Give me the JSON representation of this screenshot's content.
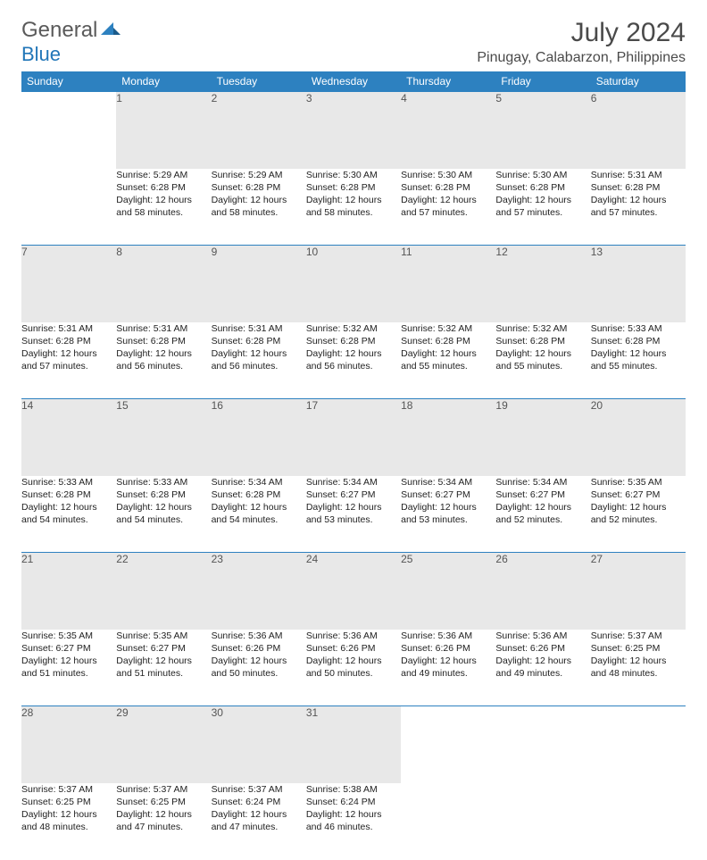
{
  "logo": {
    "general": "General",
    "blue": "Blue"
  },
  "title": "July 2024",
  "location": "Pinugay, Calabarzon, Philippines",
  "colors": {
    "header_bg": "#2d81c0",
    "header_text": "#ffffff",
    "daynum_bg": "#e8e8e8",
    "rule": "#2d81c0",
    "text": "#222222",
    "logo_gray": "#5a5a5a",
    "logo_blue": "#2176b8"
  },
  "fonts": {
    "title_size_pt": 22,
    "location_size_pt": 12,
    "header_size_pt": 9,
    "body_size_pt": 8
  },
  "weekdays": [
    "Sunday",
    "Monday",
    "Tuesday",
    "Wednesday",
    "Thursday",
    "Friday",
    "Saturday"
  ],
  "weeks": [
    {
      "days": [
        null,
        {
          "n": "1",
          "sunrise": "Sunrise: 5:29 AM",
          "sunset": "Sunset: 6:28 PM",
          "day1": "Daylight: 12 hours",
          "day2": "and 58 minutes."
        },
        {
          "n": "2",
          "sunrise": "Sunrise: 5:29 AM",
          "sunset": "Sunset: 6:28 PM",
          "day1": "Daylight: 12 hours",
          "day2": "and 58 minutes."
        },
        {
          "n": "3",
          "sunrise": "Sunrise: 5:30 AM",
          "sunset": "Sunset: 6:28 PM",
          "day1": "Daylight: 12 hours",
          "day2": "and 58 minutes."
        },
        {
          "n": "4",
          "sunrise": "Sunrise: 5:30 AM",
          "sunset": "Sunset: 6:28 PM",
          "day1": "Daylight: 12 hours",
          "day2": "and 57 minutes."
        },
        {
          "n": "5",
          "sunrise": "Sunrise: 5:30 AM",
          "sunset": "Sunset: 6:28 PM",
          "day1": "Daylight: 12 hours",
          "day2": "and 57 minutes."
        },
        {
          "n": "6",
          "sunrise": "Sunrise: 5:31 AM",
          "sunset": "Sunset: 6:28 PM",
          "day1": "Daylight: 12 hours",
          "day2": "and 57 minutes."
        }
      ]
    },
    {
      "days": [
        {
          "n": "7",
          "sunrise": "Sunrise: 5:31 AM",
          "sunset": "Sunset: 6:28 PM",
          "day1": "Daylight: 12 hours",
          "day2": "and 57 minutes."
        },
        {
          "n": "8",
          "sunrise": "Sunrise: 5:31 AM",
          "sunset": "Sunset: 6:28 PM",
          "day1": "Daylight: 12 hours",
          "day2": "and 56 minutes."
        },
        {
          "n": "9",
          "sunrise": "Sunrise: 5:31 AM",
          "sunset": "Sunset: 6:28 PM",
          "day1": "Daylight: 12 hours",
          "day2": "and 56 minutes."
        },
        {
          "n": "10",
          "sunrise": "Sunrise: 5:32 AM",
          "sunset": "Sunset: 6:28 PM",
          "day1": "Daylight: 12 hours",
          "day2": "and 56 minutes."
        },
        {
          "n": "11",
          "sunrise": "Sunrise: 5:32 AM",
          "sunset": "Sunset: 6:28 PM",
          "day1": "Daylight: 12 hours",
          "day2": "and 55 minutes."
        },
        {
          "n": "12",
          "sunrise": "Sunrise: 5:32 AM",
          "sunset": "Sunset: 6:28 PM",
          "day1": "Daylight: 12 hours",
          "day2": "and 55 minutes."
        },
        {
          "n": "13",
          "sunrise": "Sunrise: 5:33 AM",
          "sunset": "Sunset: 6:28 PM",
          "day1": "Daylight: 12 hours",
          "day2": "and 55 minutes."
        }
      ]
    },
    {
      "days": [
        {
          "n": "14",
          "sunrise": "Sunrise: 5:33 AM",
          "sunset": "Sunset: 6:28 PM",
          "day1": "Daylight: 12 hours",
          "day2": "and 54 minutes."
        },
        {
          "n": "15",
          "sunrise": "Sunrise: 5:33 AM",
          "sunset": "Sunset: 6:28 PM",
          "day1": "Daylight: 12 hours",
          "day2": "and 54 minutes."
        },
        {
          "n": "16",
          "sunrise": "Sunrise: 5:34 AM",
          "sunset": "Sunset: 6:28 PM",
          "day1": "Daylight: 12 hours",
          "day2": "and 54 minutes."
        },
        {
          "n": "17",
          "sunrise": "Sunrise: 5:34 AM",
          "sunset": "Sunset: 6:27 PM",
          "day1": "Daylight: 12 hours",
          "day2": "and 53 minutes."
        },
        {
          "n": "18",
          "sunrise": "Sunrise: 5:34 AM",
          "sunset": "Sunset: 6:27 PM",
          "day1": "Daylight: 12 hours",
          "day2": "and 53 minutes."
        },
        {
          "n": "19",
          "sunrise": "Sunrise: 5:34 AM",
          "sunset": "Sunset: 6:27 PM",
          "day1": "Daylight: 12 hours",
          "day2": "and 52 minutes."
        },
        {
          "n": "20",
          "sunrise": "Sunrise: 5:35 AM",
          "sunset": "Sunset: 6:27 PM",
          "day1": "Daylight: 12 hours",
          "day2": "and 52 minutes."
        }
      ]
    },
    {
      "days": [
        {
          "n": "21",
          "sunrise": "Sunrise: 5:35 AM",
          "sunset": "Sunset: 6:27 PM",
          "day1": "Daylight: 12 hours",
          "day2": "and 51 minutes."
        },
        {
          "n": "22",
          "sunrise": "Sunrise: 5:35 AM",
          "sunset": "Sunset: 6:27 PM",
          "day1": "Daylight: 12 hours",
          "day2": "and 51 minutes."
        },
        {
          "n": "23",
          "sunrise": "Sunrise: 5:36 AM",
          "sunset": "Sunset: 6:26 PM",
          "day1": "Daylight: 12 hours",
          "day2": "and 50 minutes."
        },
        {
          "n": "24",
          "sunrise": "Sunrise: 5:36 AM",
          "sunset": "Sunset: 6:26 PM",
          "day1": "Daylight: 12 hours",
          "day2": "and 50 minutes."
        },
        {
          "n": "25",
          "sunrise": "Sunrise: 5:36 AM",
          "sunset": "Sunset: 6:26 PM",
          "day1": "Daylight: 12 hours",
          "day2": "and 49 minutes."
        },
        {
          "n": "26",
          "sunrise": "Sunrise: 5:36 AM",
          "sunset": "Sunset: 6:26 PM",
          "day1": "Daylight: 12 hours",
          "day2": "and 49 minutes."
        },
        {
          "n": "27",
          "sunrise": "Sunrise: 5:37 AM",
          "sunset": "Sunset: 6:25 PM",
          "day1": "Daylight: 12 hours",
          "day2": "and 48 minutes."
        }
      ]
    },
    {
      "days": [
        {
          "n": "28",
          "sunrise": "Sunrise: 5:37 AM",
          "sunset": "Sunset: 6:25 PM",
          "day1": "Daylight: 12 hours",
          "day2": "and 48 minutes."
        },
        {
          "n": "29",
          "sunrise": "Sunrise: 5:37 AM",
          "sunset": "Sunset: 6:25 PM",
          "day1": "Daylight: 12 hours",
          "day2": "and 47 minutes."
        },
        {
          "n": "30",
          "sunrise": "Sunrise: 5:37 AM",
          "sunset": "Sunset: 6:24 PM",
          "day1": "Daylight: 12 hours",
          "day2": "and 47 minutes."
        },
        {
          "n": "31",
          "sunrise": "Sunrise: 5:38 AM",
          "sunset": "Sunset: 6:24 PM",
          "day1": "Daylight: 12 hours",
          "day2": "and 46 minutes."
        },
        null,
        null,
        null
      ]
    }
  ]
}
